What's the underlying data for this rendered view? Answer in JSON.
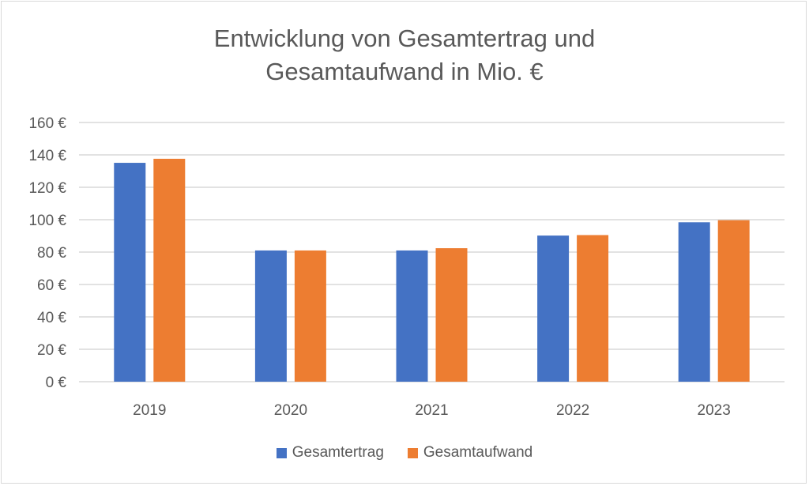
{
  "chart_data": {
    "type": "bar",
    "title_lines": [
      "Entwicklung von Gesamtertrag und",
      "Gesamtaufwand in Mio. €"
    ],
    "categories": [
      "2019",
      "2020",
      "2021",
      "2022",
      "2023"
    ],
    "series": [
      {
        "name": "Gesamtertrag",
        "color": "#4472C4",
        "values": [
          135.1,
          81,
          81,
          90.2,
          98.4
        ]
      },
      {
        "name": "Gesamtaufwand",
        "color": "#ED7D31",
        "values": [
          137.6,
          81,
          82.4,
          90.5,
          99.7
        ]
      }
    ],
    "ylim": [
      0,
      160
    ],
    "yticks": [
      "0 €",
      "20 €",
      "40 €",
      "60 €",
      "80 €",
      "100 €",
      "120 €",
      "140 €",
      "160 €"
    ],
    "grid": true,
    "legend": "bottom"
  }
}
